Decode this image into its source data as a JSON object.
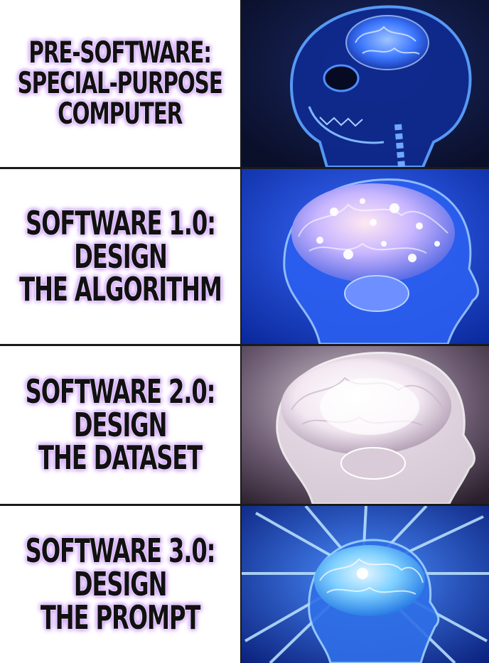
{
  "panels": [
    {
      "caption_lines": [
        "PRE-SOFTWARE:",
        "SPECIAL-PURPOSE",
        "COMPUTER"
      ],
      "image": "skull-glowing-brain-small"
    },
    {
      "caption_lines": [
        "SOFTWARE 1.0:",
        "DESIGN",
        "THE ALGORITHM"
      ],
      "image": "head-brain-sparkling"
    },
    {
      "caption_lines": [
        "SOFTWARE 2.0:",
        "DESIGN",
        "THE DATASET"
      ],
      "image": "head-brain-white-glow"
    },
    {
      "caption_lines": [
        "SOFTWARE 3.0:",
        "DESIGN",
        "THE PROMPT"
      ],
      "image": "head-brain-radiating-beams"
    }
  ],
  "colors": {
    "caption_text": "#111111",
    "caption_glow": "#c890ff",
    "divider": "#1a1a1a"
  }
}
